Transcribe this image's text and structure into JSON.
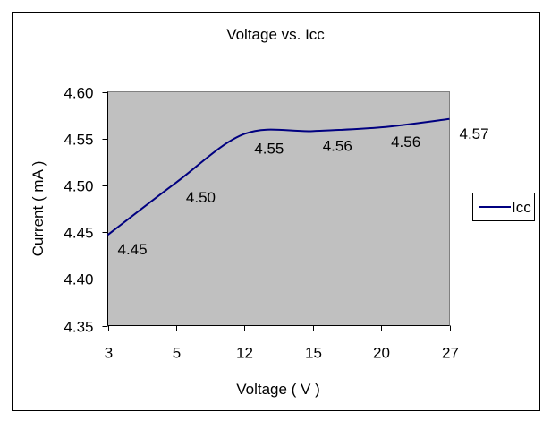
{
  "chart_data": {
    "type": "line",
    "title": "Voltage vs. Icc",
    "xlabel": "Voltage ( V )",
    "ylabel": "Current ( mA )",
    "categories": [
      "3",
      "5",
      "12",
      "15",
      "20",
      "27"
    ],
    "ylim": [
      4.35,
      4.6
    ],
    "yticks": [
      "4.35",
      "4.40",
      "4.45",
      "4.50",
      "4.55",
      "4.60"
    ],
    "series": [
      {
        "name": "Icc",
        "values": [
          4.447,
          4.503,
          4.555,
          4.558,
          4.562,
          4.571
        ],
        "data_labels": [
          "4.45",
          "4.50",
          "4.55",
          "4.56",
          "4.56",
          "4.57"
        ]
      }
    ],
    "legend_position": "right",
    "grid": false,
    "colors": {
      "plot_background": "#c0c0c0",
      "line": "#000080",
      "border": "#000000"
    }
  }
}
